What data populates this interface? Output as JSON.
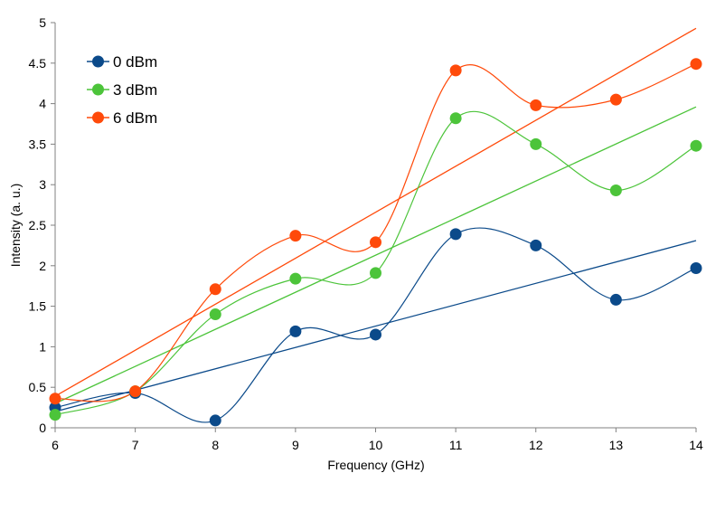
{
  "chart_data": {
    "type": "line",
    "title": "",
    "xlabel": "Frequency  (GHz)",
    "ylabel": "Intensity  (a. u.)",
    "x": [
      6,
      7,
      8,
      9,
      10,
      11,
      12,
      13,
      14
    ],
    "xlim": [
      6,
      14
    ],
    "ylim": [
      0,
      5
    ],
    "x_ticks": [
      "6",
      "7",
      "8",
      "9",
      "10",
      "11",
      "12",
      "13",
      "14"
    ],
    "y_ticks": [
      "0",
      "0.5",
      "1",
      "1.5",
      "2",
      "2.5",
      "3",
      "3.5",
      "4",
      "4.5",
      "5"
    ],
    "grid": false,
    "legend_position": "top-left",
    "series": [
      {
        "name": "0 dBm",
        "color": "#0b4a8a",
        "values": [
          0.25,
          0.43,
          0.09,
          1.19,
          1.15,
          2.39,
          2.25,
          1.58,
          1.97
        ],
        "trendline": [
          0.2,
          2.31
        ]
      },
      {
        "name": "3 dBm",
        "color": "#4cc43a",
        "values": [
          0.16,
          0.45,
          1.4,
          1.84,
          1.91,
          3.82,
          3.5,
          2.93,
          3.48
        ],
        "trendline": [
          0.3,
          3.96
        ]
      },
      {
        "name": "6 dBm",
        "color": "#ff4a0a",
        "values": [
          0.36,
          0.45,
          1.71,
          2.37,
          2.29,
          4.41,
          3.98,
          4.05,
          4.49
        ],
        "trendline": [
          0.39,
          4.93
        ]
      }
    ]
  }
}
